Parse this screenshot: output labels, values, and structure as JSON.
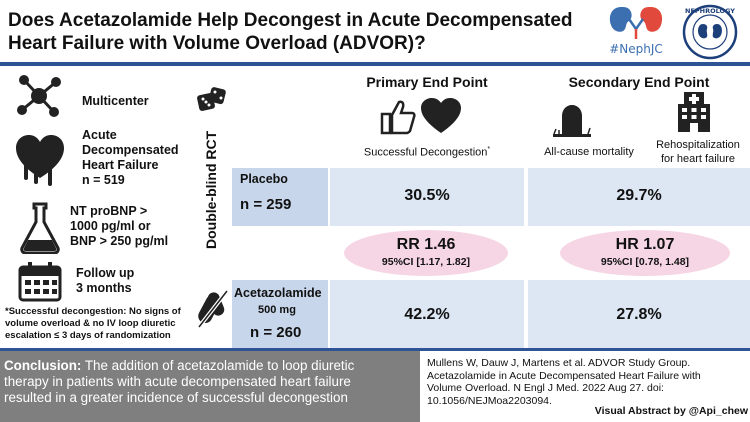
{
  "header": {
    "title_line1": "Does Acetazolamide Help Decongest in Acute Decompensated",
    "title_line2": "Heart Failure with Volume Overload (ADVOR)?",
    "logo_tag": "#NephJC",
    "seal_text": "NEPHROLOGY"
  },
  "study": {
    "design_label": "Double-blind RCT",
    "features": [
      {
        "icon": "network-icon",
        "lines": [
          "Multicenter"
        ]
      },
      {
        "icon": "heart-melting-icon",
        "lines": [
          "Acute",
          "Decompensated",
          "Heart Failure",
          "n = 519"
        ]
      },
      {
        "icon": "flask-icon",
        "lines": [
          "NT proBNP >",
          "1000 pg/ml or",
          "BNP > 250 pg/ml"
        ]
      },
      {
        "icon": "calendar-icon",
        "lines": [
          "Follow up",
          "3 months"
        ]
      }
    ],
    "footnote_lines": [
      "*Successful decongestion: No signs of",
      "volume overload & no IV loop diuretic",
      "escalation ≤ 3 days of randomization"
    ]
  },
  "endpoints": {
    "primary_title": "Primary End Point",
    "primary_label": "Successful Decongestion",
    "primary_mark": "*",
    "secondary_title": "Secondary End Point",
    "mortality_label": "All-cause mortality",
    "rehosp_line1": "Rehospitalization",
    "rehosp_line2": "for heart failure"
  },
  "groups": {
    "placebo": {
      "name": "Placebo",
      "n": "n = 259",
      "primary": "30.5%",
      "secondary": "29.7%"
    },
    "acetazolamide": {
      "name": "Acetazolamide",
      "dose": "500 mg",
      "n": "n = 260",
      "primary": "42.2%",
      "secondary": "27.8%"
    }
  },
  "effects": {
    "primary": {
      "measure": "RR 1.46",
      "ci": "95%CI [1.17, 1.82]"
    },
    "secondary": {
      "measure": "HR 1.07",
      "ci": "95%CI [0.78, 1.48]"
    }
  },
  "conclusion": {
    "label": "Conclusion:",
    "line1": " The addition of acetazolamide to loop diuretic",
    "line2": "therapy in patients with acute decompensated heart failure",
    "line3": "resulted in a greater incidence of successful decongestion"
  },
  "reference": {
    "line1": "Mullens W, Dauw J, Martens et al. ADVOR Study Group.",
    "line2": "Acetazolamide in Acute Decompensated Heart Failure with",
    "line3": "Volume Overload.  N Engl J Med. 2022 Aug 27. doi:",
    "line4": "10.1056/NEJMoa2203094."
  },
  "credit": "Visual Abstract by @Api_chew",
  "colors": {
    "accent": "#2f5496",
    "band": "#dde7f3",
    "band_label": "#c7d6ea",
    "ellipse": "#f6d6e4",
    "conclusion_bg": "#7f7f7f"
  }
}
